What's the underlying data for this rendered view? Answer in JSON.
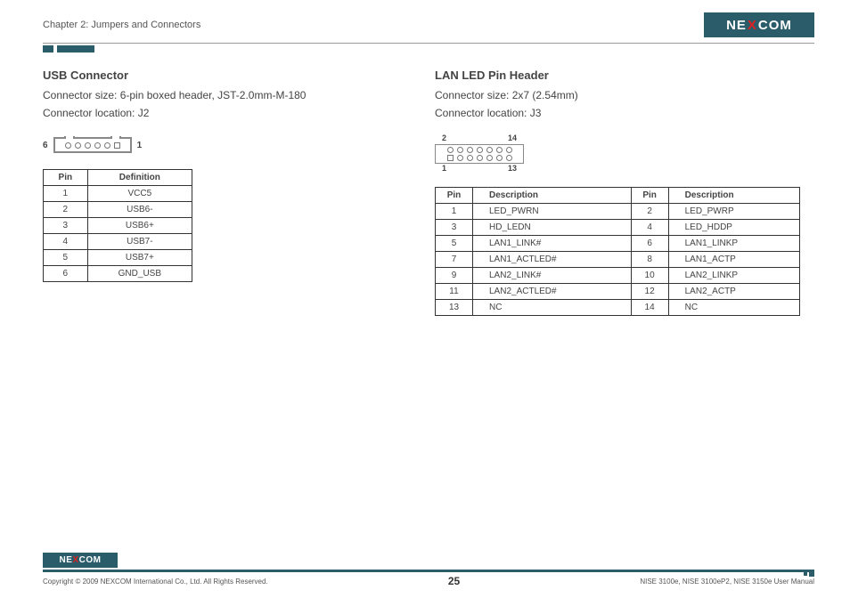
{
  "header": {
    "chapter": "Chapter 2: Jumpers and Connectors",
    "logo": {
      "pre": "NE",
      "x": "X",
      "post": "COM"
    }
  },
  "usb": {
    "title": "USB Connector",
    "size_line": "Connector size:  6-pin boxed header,  JST-2.0mm-M-180",
    "loc_line": "Connector location: J2",
    "left_pin": "6",
    "right_pin": "1",
    "th_pin": "Pin",
    "th_def": "Definition",
    "rows": [
      {
        "pin": "1",
        "def": "VCC5"
      },
      {
        "pin": "2",
        "def": "USB6-"
      },
      {
        "pin": "3",
        "def": "USB6+"
      },
      {
        "pin": "4",
        "def": "USB7-"
      },
      {
        "pin": "5",
        "def": "USB7+"
      },
      {
        "pin": "6",
        "def": "GND_USB"
      }
    ]
  },
  "lan": {
    "title": "LAN LED Pin Header",
    "size_line": "Connector size:  2x7 (2.54mm)",
    "loc_line": "Connector location: J3",
    "top_left": "2",
    "top_right": "14",
    "bot_left": "1",
    "bot_right": "13",
    "th_pin": "Pin",
    "th_desc": "Description",
    "rows": [
      {
        "p1": "1",
        "d1": "LED_PWRN",
        "p2": "2",
        "d2": "LED_PWRP"
      },
      {
        "p1": "3",
        "d1": "HD_LEDN",
        "p2": "4",
        "d2": "LED_HDDP"
      },
      {
        "p1": "5",
        "d1": "LAN1_LINK#",
        "p2": "6",
        "d2": "LAN1_LINKP"
      },
      {
        "p1": "7",
        "d1": "LAN1_ACTLED#",
        "p2": "8",
        "d2": "LAN1_ACTP"
      },
      {
        "p1": "9",
        "d1": "LAN2_LINK#",
        "p2": "10",
        "d2": "LAN2_LINKP"
      },
      {
        "p1": "11",
        "d1": "LAN2_ACTLED#",
        "p2": "12",
        "d2": "LAN2_ACTP"
      },
      {
        "p1": "13",
        "d1": "NC",
        "p2": "14",
        "d2": "NC"
      }
    ]
  },
  "footer": {
    "copyright": "Copyright © 2009 NEXCOM International Co., Ltd. All Rights Reserved.",
    "page": "25",
    "manual": "NISE 3100e, NISE 3100eP2, NISE 3150e User Manual",
    "logo": {
      "pre": "NE",
      "x": "X",
      "post": "COM"
    }
  },
  "style": {
    "brand_bg": "#2a5c6a",
    "brand_accent": "#d22",
    "text_color": "#444",
    "border_color": "#333"
  }
}
